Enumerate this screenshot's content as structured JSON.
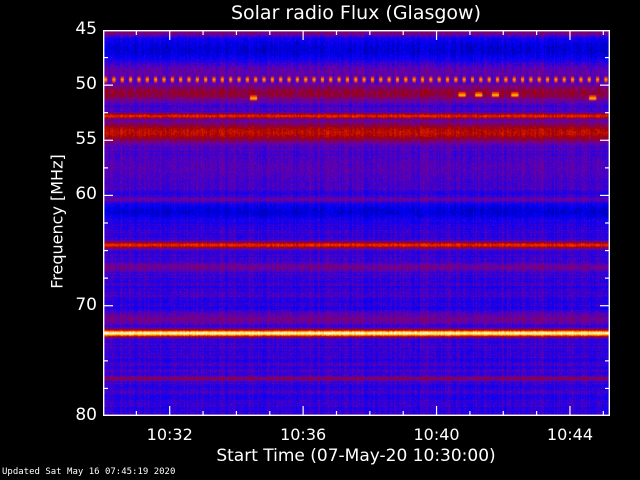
{
  "chart_data": {
    "type": "heatmap",
    "title": "Solar radio Flux (Glasgow)",
    "xlabel": "Start Time (07-May-20 10:30:00)",
    "ylabel": "Frequency [MHz]",
    "x_range": [
      "10:30:00",
      "10:45:12"
    ],
    "x_ticks": [
      "10:32",
      "10:36",
      "10:40",
      "10:44"
    ],
    "x_tick_minutes": [
      2,
      6,
      10,
      14
    ],
    "y_range": [
      45,
      80
    ],
    "y_inverted": true,
    "y_ticks": [
      "45",
      "50",
      "55",
      "60",
      "70",
      "80"
    ],
    "y_tick_values": [
      45,
      50,
      55,
      60,
      70,
      80
    ],
    "colormap": [
      "#00006e",
      "#0000ff",
      "#6a00a8",
      "#a00000",
      "#ff3000",
      "#ffd000",
      "#ffffff"
    ],
    "background_level": 0.25,
    "bands": [
      {
        "freq": 45.3,
        "width": 0.3,
        "level": 0.45
      },
      {
        "freq": 46.8,
        "width": 1.2,
        "level": 0.12
      },
      {
        "freq": 48.8,
        "width": 0.8,
        "level": 0.32
      },
      {
        "freq": 50.7,
        "width": 0.8,
        "level": 0.45
      },
      {
        "freq": 52.8,
        "width": 0.25,
        "level": 0.62
      },
      {
        "freq": 54.3,
        "width": 0.9,
        "level": 0.55
      },
      {
        "freq": 57.5,
        "width": 1.5,
        "level": 0.3
      },
      {
        "freq": 60.4,
        "width": 0.2,
        "level": 0.38
      },
      {
        "freq": 61.5,
        "width": 0.8,
        "level": 0.12
      },
      {
        "freq": 64.5,
        "width": 0.3,
        "level": 0.63
      },
      {
        "freq": 66.5,
        "width": 0.4,
        "level": 0.36
      },
      {
        "freq": 71.2,
        "width": 0.5,
        "level": 0.36
      },
      {
        "freq": 72.5,
        "width": 0.3,
        "level": 0.96
      },
      {
        "freq": 76.6,
        "width": 0.15,
        "level": 0.45
      }
    ],
    "periodic_bursts": {
      "freq": 49.5,
      "period_seconds": 15,
      "level": 0.8
    },
    "bursts": [
      {
        "time": "10:34:30",
        "freq": 51.2,
        "level": 0.8
      },
      {
        "time": "10:40:45",
        "freq": 50.9,
        "level": 0.8
      },
      {
        "time": "10:41:15",
        "freq": 50.9,
        "level": 0.85
      },
      {
        "time": "10:41:45",
        "freq": 50.9,
        "level": 0.85
      },
      {
        "time": "10:42:20",
        "freq": 50.9,
        "level": 0.85
      },
      {
        "time": "10:44:40",
        "freq": 51.2,
        "level": 0.8
      }
    ]
  },
  "footer": {
    "updated": "Updated Sat May 16 07:45:19 2020"
  }
}
